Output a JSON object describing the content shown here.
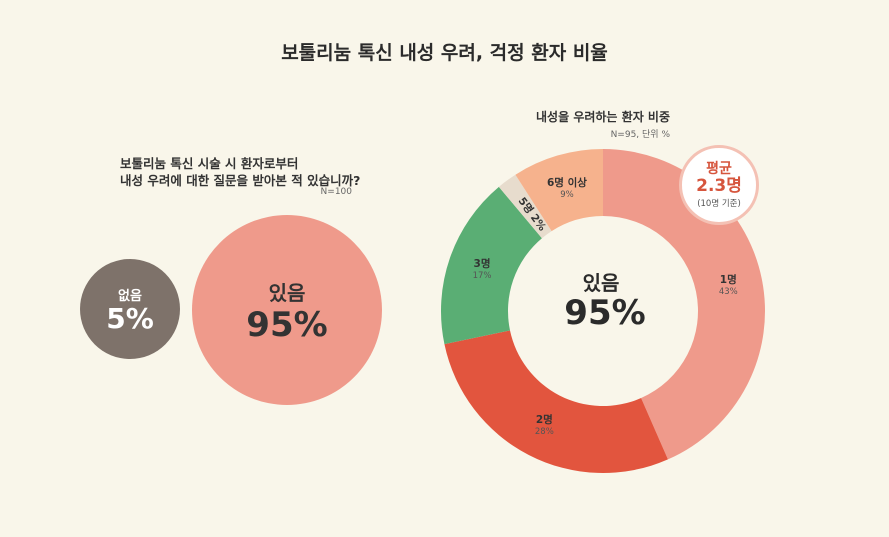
{
  "title": "보툴리눔 톡신 내성 우려, 걱정 환자 비율",
  "left": {
    "question_line1": "보툴리눔 톡신 시술 시 환자로부터",
    "question_line2": "내성 우려에 대한 질문을 받아본 적 있습니까?",
    "n_note": "N=100",
    "no_label": "없음",
    "no_value": "5%",
    "yes_label": "있음",
    "yes_value": "95%"
  },
  "right": {
    "title": "내성을 우려하는 환자 비중",
    "note": "N=95, 단위 %",
    "center_label": "있음",
    "center_value": "95%",
    "average": {
      "label": "평균",
      "value": "2.3명",
      "note": "(10명 기준)"
    }
  },
  "chart_data": [
    {
      "type": "pie",
      "categories": [
        "없음",
        "있음"
      ],
      "values": [
        5,
        95
      ],
      "unit": "%",
      "n": 100,
      "colors": [
        "#7e726a",
        "#ef9a8b"
      ]
    },
    {
      "type": "pie",
      "title": "내성을 우려하는 환자 비중",
      "categories": [
        "1명",
        "2명",
        "3명",
        "5명",
        "6명 이상"
      ],
      "values": [
        43,
        28,
        17,
        2,
        9
      ],
      "labels": [
        "43%",
        "28%",
        "17%",
        "2%",
        "9%"
      ],
      "unit": "%",
      "n": 95,
      "colors": [
        "#ef9a8b",
        "#e2553e",
        "#5aae74",
        "#e7dccd",
        "#f6b28d"
      ]
    }
  ]
}
